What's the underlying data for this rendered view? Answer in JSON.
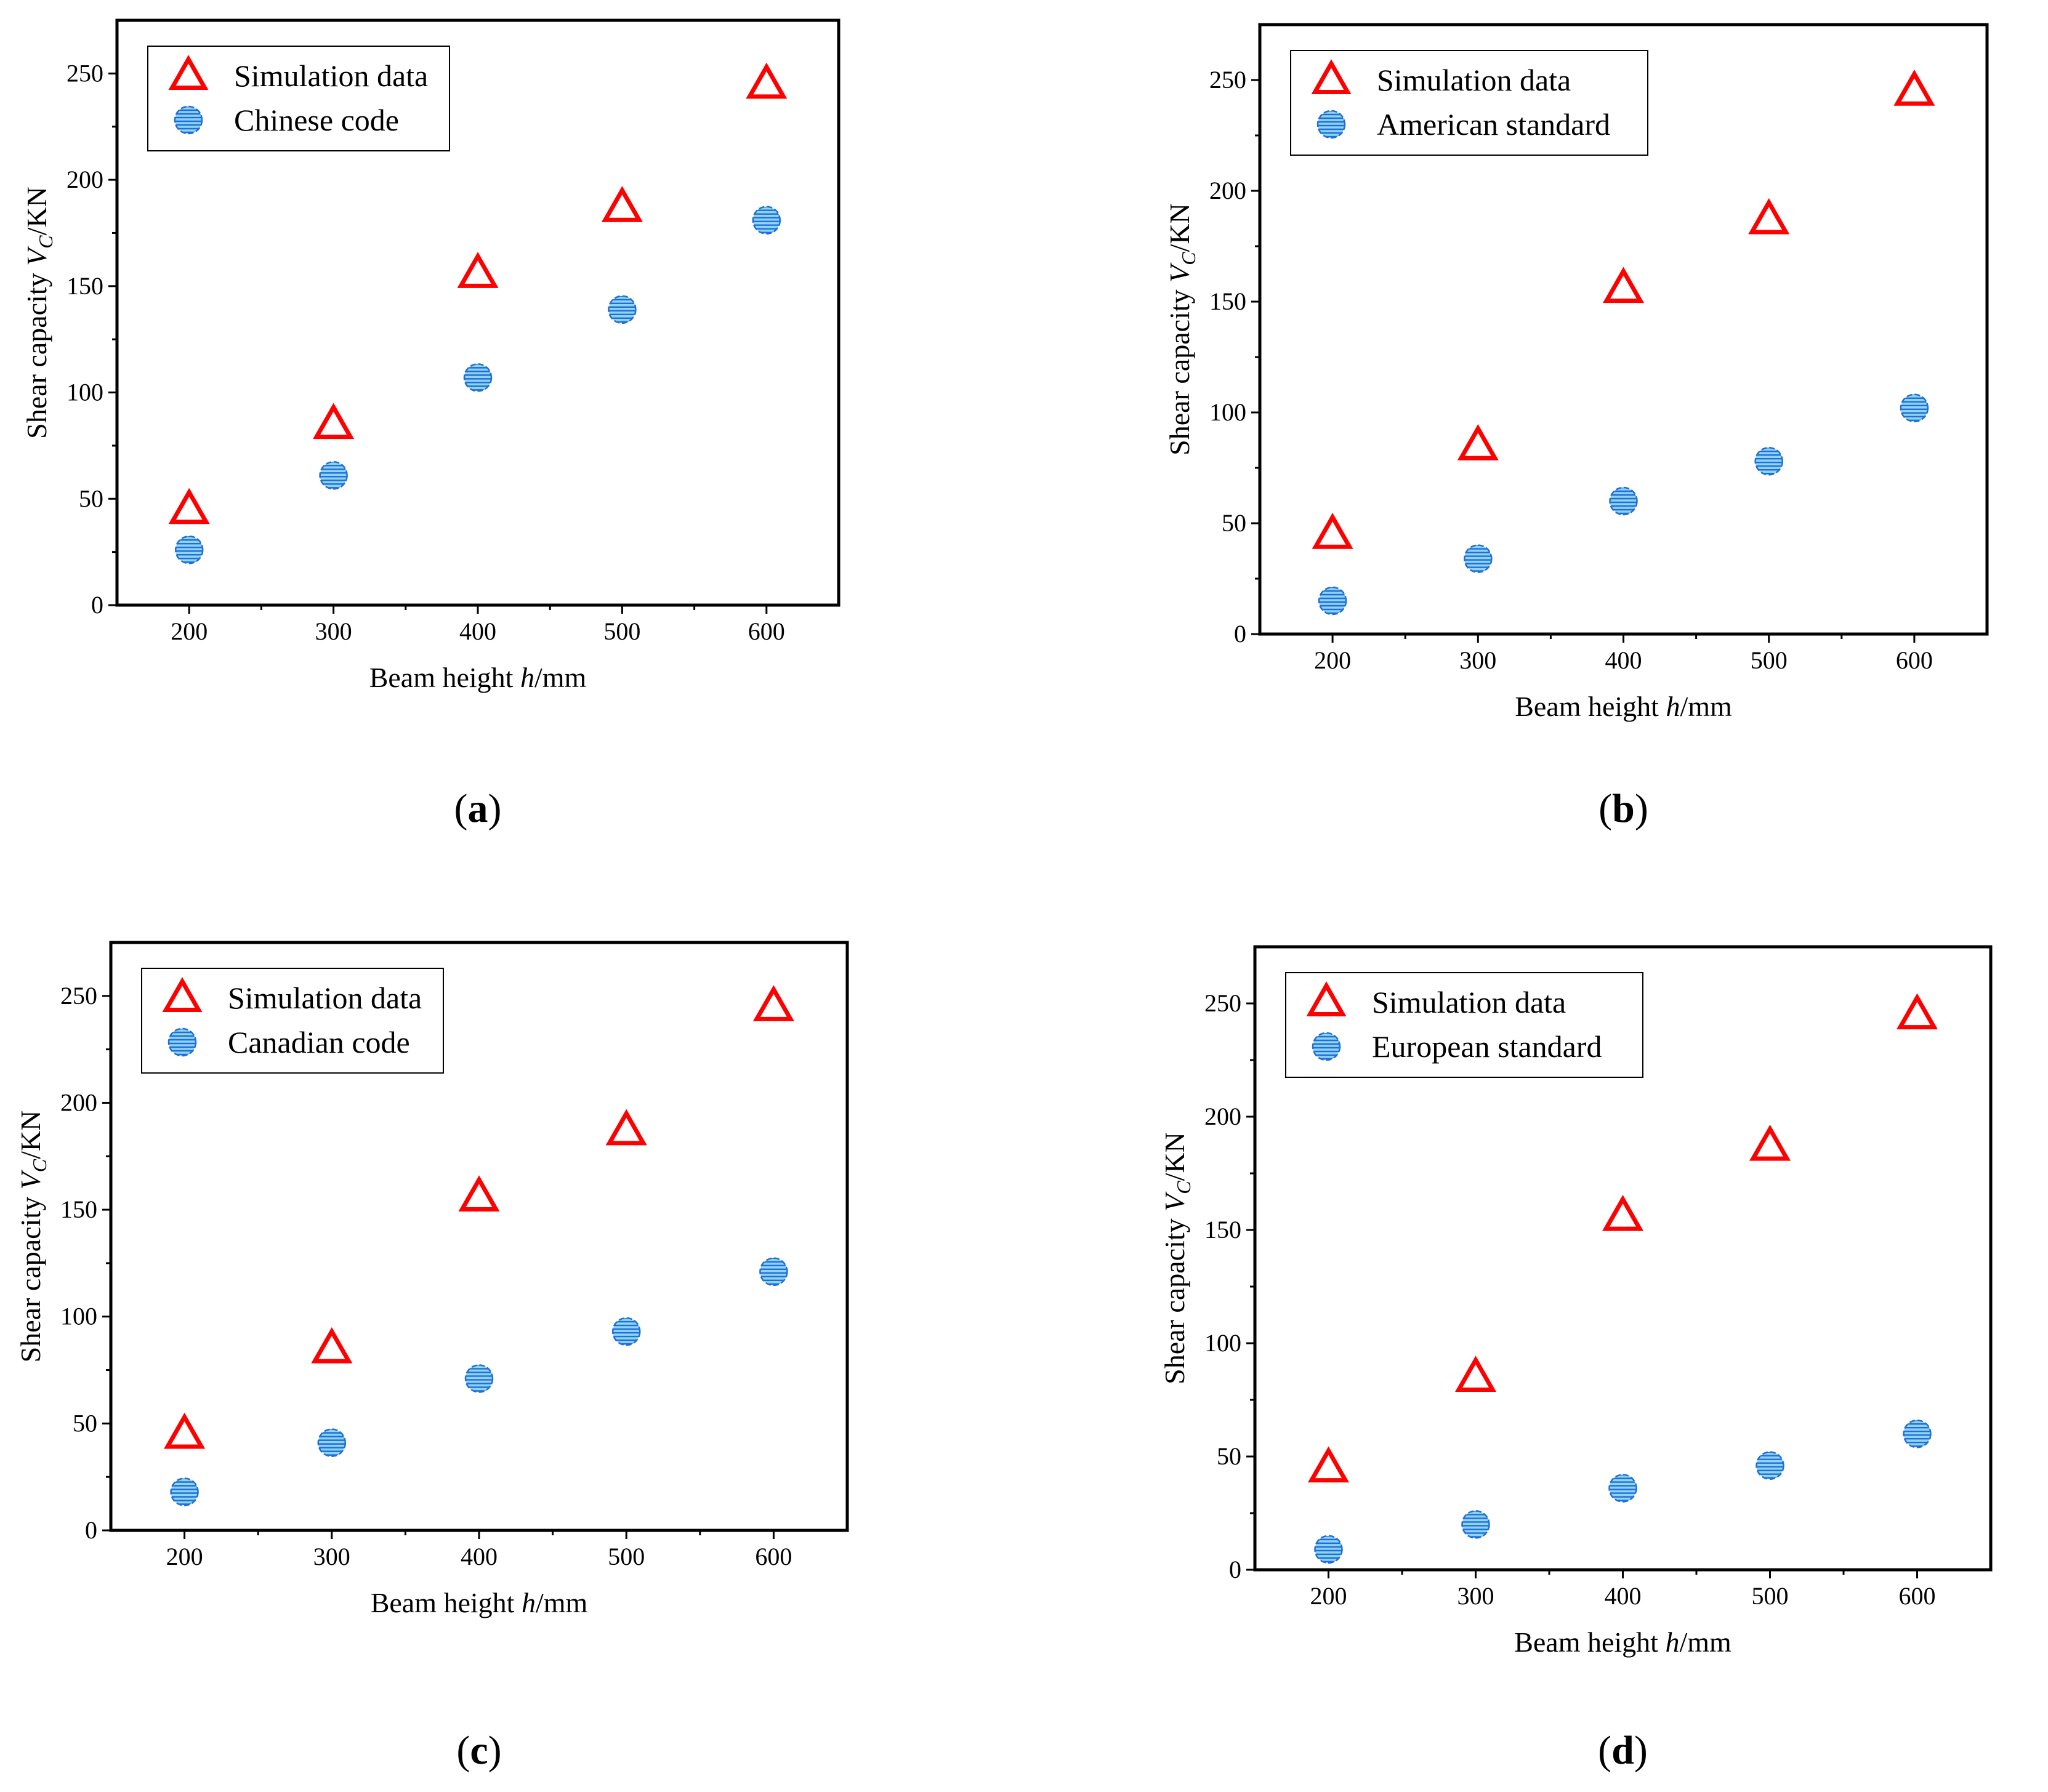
{
  "chart_data": [
    {
      "type": "scatter",
      "caption_letter": "a",
      "xlabel_prefix": "Beam height ",
      "xlabel_var": "h",
      "xlabel_suffix": "/mm",
      "ylabel_prefix": "Shear capacity ",
      "ylabel_var": "V",
      "ylabel_sub": "C",
      "ylabel_suffix": "/KN",
      "xlim": [
        150,
        650
      ],
      "ylim": [
        0,
        275
      ],
      "xticks": [
        200,
        300,
        400,
        500,
        600
      ],
      "yticks": [
        0,
        50,
        100,
        150,
        200,
        250
      ],
      "legend_position": "top-left",
      "series": [
        {
          "name": "Simulation data",
          "marker": "triangle",
          "color": "#ff0000",
          "x": [
            200,
            300,
            400,
            500,
            600
          ],
          "y": [
            45,
            85,
            156,
            187,
            245
          ]
        },
        {
          "name": "Chinese code",
          "marker": "circle",
          "color": "#1f6fd6",
          "x": [
            200,
            300,
            400,
            500,
            600
          ],
          "y": [
            26,
            61,
            107,
            139,
            181
          ]
        }
      ]
    },
    {
      "type": "scatter",
      "caption_letter": "b",
      "xlabel_prefix": "Beam height ",
      "xlabel_var": "h",
      "xlabel_suffix": "/mm",
      "ylabel_prefix": "Shear capacity ",
      "ylabel_var": "V",
      "ylabel_sub": "C",
      "ylabel_suffix": "/KN",
      "xlim": [
        150,
        650
      ],
      "ylim": [
        0,
        275
      ],
      "xticks": [
        200,
        300,
        400,
        500,
        600
      ],
      "yticks": [
        0,
        50,
        100,
        150,
        200,
        250
      ],
      "legend_position": "top-left",
      "series": [
        {
          "name": "Simulation data",
          "marker": "triangle",
          "color": "#ff0000",
          "x": [
            200,
            300,
            400,
            500,
            600
          ],
          "y": [
            45,
            85,
            156,
            187,
            245
          ]
        },
        {
          "name": "American standard",
          "marker": "circle",
          "color": "#1f6fd6",
          "x": [
            200,
            300,
            400,
            500,
            600
          ],
          "y": [
            15,
            34,
            60,
            78,
            102
          ]
        }
      ]
    },
    {
      "type": "scatter",
      "caption_letter": "c",
      "xlabel_prefix": "Beam height ",
      "xlabel_var": "h",
      "xlabel_suffix": "/mm",
      "ylabel_prefix": "Shear capacity ",
      "ylabel_var": "V",
      "ylabel_sub": "C",
      "ylabel_suffix": "/KN",
      "xlim": [
        150,
        650
      ],
      "ylim": [
        0,
        275
      ],
      "xticks": [
        200,
        300,
        400,
        500,
        600
      ],
      "yticks": [
        0,
        50,
        100,
        150,
        200,
        250
      ],
      "legend_position": "top-left",
      "series": [
        {
          "name": "Simulation data",
          "marker": "triangle",
          "color": "#ff0000",
          "x": [
            200,
            300,
            400,
            500,
            600
          ],
          "y": [
            45,
            85,
            156,
            187,
            245
          ]
        },
        {
          "name": "Canadian code",
          "marker": "circle",
          "color": "#1f6fd6",
          "x": [
            200,
            300,
            400,
            500,
            600
          ],
          "y": [
            18,
            41,
            71,
            93,
            121
          ]
        }
      ]
    },
    {
      "type": "scatter",
      "caption_letter": "d",
      "xlabel_prefix": "Beam height ",
      "xlabel_var": "h",
      "xlabel_suffix": "/mm",
      "ylabel_prefix": "Shear capacity ",
      "ylabel_var": "V",
      "ylabel_sub": "C",
      "ylabel_suffix": "/KN",
      "xlim": [
        150,
        650
      ],
      "ylim": [
        0,
        275
      ],
      "xticks": [
        200,
        300,
        400,
        500,
        600
      ],
      "yticks": [
        0,
        50,
        100,
        150,
        200,
        250
      ],
      "legend_position": "top-left",
      "series": [
        {
          "name": "Simulation data",
          "marker": "triangle",
          "color": "#ff0000",
          "x": [
            200,
            300,
            400,
            500,
            600
          ],
          "y": [
            45,
            85,
            156,
            187,
            245
          ]
        },
        {
          "name": "European standard",
          "marker": "circle",
          "color": "#1f6fd6",
          "x": [
            200,
            300,
            400,
            500,
            600
          ],
          "y": [
            9,
            20,
            36,
            46,
            60
          ]
        }
      ]
    }
  ]
}
